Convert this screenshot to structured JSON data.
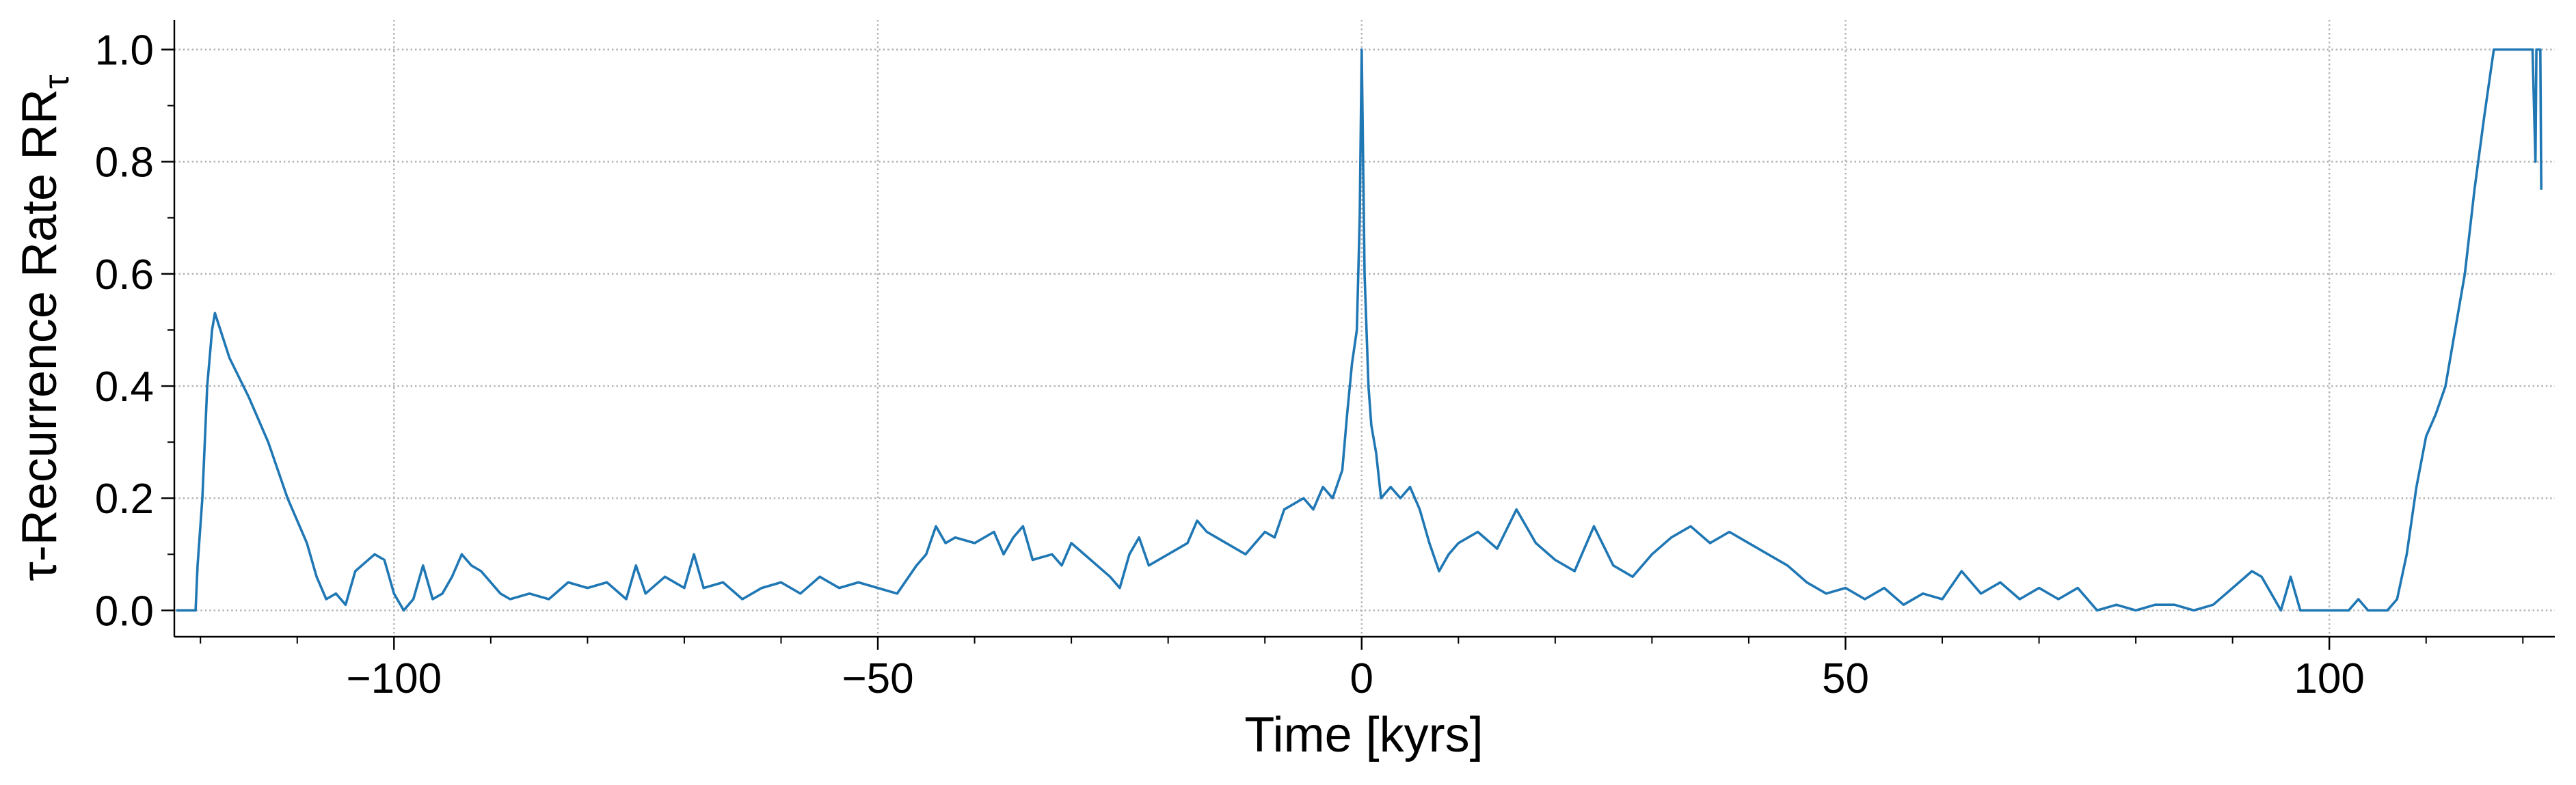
{
  "chart_data": {
    "type": "line",
    "xlabel": "Time [kyrs]",
    "ylabel": "τ-Recurrence Rate RR",
    "ylabel_sub": "τ",
    "color": "#1f77b4",
    "grid": true,
    "xlim": [
      -122.7,
      123.3
    ],
    "ylim": [
      -0.047,
      1.053
    ],
    "xticks": [
      {
        "value": -100,
        "label": "−100"
      },
      {
        "value": -50,
        "label": "−50"
      },
      0,
      50,
      100
    ],
    "yticks": [
      {
        "value": 0,
        "label": "0.0"
      },
      0.2,
      0.4,
      0.6,
      0.8,
      {
        "value": 1,
        "label": "1.0"
      }
    ],
    "xminorticks": [
      -120,
      -110,
      -90,
      -80,
      -70,
      -60,
      -40,
      -30,
      -20,
      -10,
      10,
      20,
      30,
      40,
      60,
      70,
      80,
      90,
      110,
      120
    ],
    "yminorticks": [
      0.1,
      0.3,
      0.5,
      0.7,
      0.9
    ],
    "x": [
      -122.5,
      -121,
      -120.5,
      -120.3,
      -119.8,
      -119.3,
      -118.8,
      -118.5,
      -117,
      -115,
      -113,
      -111,
      -109,
      -108,
      -107,
      -106,
      -105,
      -104,
      -102,
      -101,
      -100,
      -99,
      -98,
      -97,
      -96,
      -95,
      -94,
      -93,
      -92,
      -91,
      -90,
      -89,
      -88,
      -86,
      -84,
      -82,
      -80,
      -78,
      -76,
      -75,
      -74,
      -72,
      -70,
      -69,
      -68,
      -66,
      -64,
      -62,
      -60,
      -58,
      -56,
      -54,
      -52,
      -50,
      -48,
      -46,
      -45,
      -44,
      -43,
      -42,
      -40,
      -38,
      -37,
      -36,
      -35,
      -34,
      -32,
      -31,
      -30,
      -28,
      -26,
      -25,
      -24,
      -23,
      -22,
      -20,
      -18,
      -17,
      -16,
      -14,
      -12,
      -10,
      -9,
      -8,
      -7,
      -6,
      -5,
      -4,
      -3,
      -2,
      -1.5,
      -1,
      -0.5,
      -0.2,
      0,
      0.3,
      0.7,
      1,
      1.5,
      2,
      3,
      4,
      5,
      6,
      7,
      8,
      9,
      10,
      12,
      14,
      16,
      18,
      20,
      22,
      24,
      26,
      28,
      30,
      32,
      34,
      36,
      38,
      40,
      42,
      44,
      46,
      48,
      50,
      52,
      54,
      56,
      58,
      60,
      62,
      64,
      66,
      68,
      70,
      72,
      74,
      76,
      78,
      80,
      82,
      84,
      86,
      88,
      90,
      92,
      93,
      94,
      95,
      96,
      97,
      98,
      100,
      102,
      103,
      104,
      106,
      107,
      108,
      109,
      110,
      111,
      112,
      113,
      114,
      115,
      116,
      117,
      118,
      120,
      121,
      121.3,
      121.4,
      121.8,
      121.9
    ],
    "values": [
      0,
      0,
      0,
      0.08,
      0.2,
      0.4,
      0.5,
      0.53,
      0.45,
      0.38,
      0.3,
      0.2,
      0.12,
      0.06,
      0.02,
      0.03,
      0.01,
      0.07,
      0.1,
      0.09,
      0.03,
      0.0,
      0.02,
      0.08,
      0.02,
      0.03,
      0.06,
      0.1,
      0.08,
      0.07,
      0.05,
      0.03,
      0.02,
      0.03,
      0.02,
      0.05,
      0.04,
      0.05,
      0.02,
      0.08,
      0.03,
      0.06,
      0.04,
      0.1,
      0.04,
      0.05,
      0.02,
      0.04,
      0.05,
      0.03,
      0.06,
      0.04,
      0.05,
      0.04,
      0.03,
      0.08,
      0.1,
      0.15,
      0.12,
      0.13,
      0.12,
      0.14,
      0.1,
      0.13,
      0.15,
      0.09,
      0.1,
      0.08,
      0.12,
      0.09,
      0.06,
      0.04,
      0.1,
      0.13,
      0.08,
      0.1,
      0.12,
      0.16,
      0.14,
      0.12,
      0.1,
      0.14,
      0.13,
      0.18,
      0.19,
      0.2,
      0.18,
      0.22,
      0.2,
      0.25,
      0.35,
      0.44,
      0.5,
      0.7,
      1.0,
      0.6,
      0.4,
      0.33,
      0.28,
      0.2,
      0.22,
      0.2,
      0.22,
      0.18,
      0.12,
      0.07,
      0.1,
      0.12,
      0.14,
      0.11,
      0.18,
      0.12,
      0.09,
      0.07,
      0.15,
      0.08,
      0.06,
      0.1,
      0.13,
      0.15,
      0.12,
      0.14,
      0.12,
      0.1,
      0.08,
      0.05,
      0.03,
      0.04,
      0.02,
      0.04,
      0.01,
      0.03,
      0.02,
      0.07,
      0.03,
      0.05,
      0.02,
      0.04,
      0.02,
      0.04,
      0.0,
      0.01,
      0.0,
      0.01,
      0.01,
      0.0,
      0.01,
      0.04,
      0.07,
      0.06,
      0.03,
      0.0,
      0.06,
      0.0,
      0.0,
      0.0,
      0.0,
      0.02,
      0.0,
      0.0,
      0.02,
      0.1,
      0.22,
      0.31,
      0.35,
      0.4,
      0.5,
      0.6,
      0.75,
      0.88,
      1.0,
      1.0,
      1.0,
      1.0,
      0.8,
      1.0,
      1.0,
      0.75
    ]
  }
}
